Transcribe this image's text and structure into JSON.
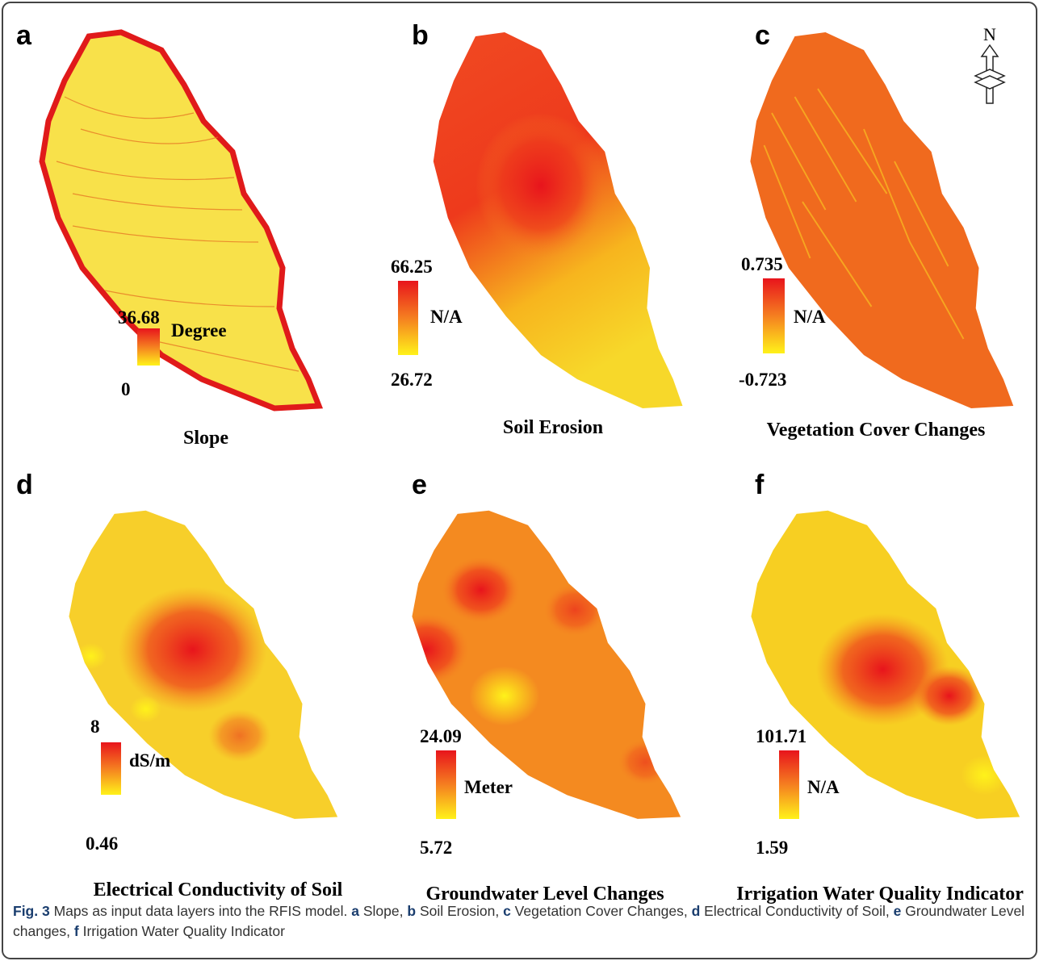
{
  "panels": [
    {
      "letter": "a",
      "max": "36.68",
      "min": "0",
      "unit": "Degree",
      "title": "Slope"
    },
    {
      "letter": "b",
      "max": "66.25",
      "min": "26.72",
      "unit": "N/A",
      "title": "Soil Erosion"
    },
    {
      "letter": "c",
      "max": "0.735",
      "min": "-0.723",
      "unit": "N/A",
      "title": "Vegetation Cover Changes"
    },
    {
      "letter": "d",
      "max": "8",
      "min": "0.46",
      "unit": "dS/m",
      "title": "Electrical Conductivity of Soil"
    },
    {
      "letter": "e",
      "max": "24.09",
      "min": "5.72",
      "unit": "Meter",
      "title": "Groundwater Level Changes"
    },
    {
      "letter": "f",
      "max": "101.71",
      "min": "1.59",
      "unit": "N/A",
      "title": "Irrigation Water Quality Indicator"
    }
  ],
  "north": "N",
  "caption": {
    "label": "Fig. 3",
    "text": "Maps as input data layers into the RFIS model.",
    "items": [
      {
        "letter": "a",
        "text": "Slope,"
      },
      {
        "letter": "b",
        "text": "Soil Erosion,"
      },
      {
        "letter": "c",
        "text": "Vegetation Cover Changes,"
      },
      {
        "letter": "d",
        "text": "Electrical Conductivity of Soil,"
      },
      {
        "letter": "e",
        "text": "Groundwater Level changes,"
      },
      {
        "letter": "f",
        "text": "Irrigation Water Quality Indicator"
      }
    ]
  }
}
